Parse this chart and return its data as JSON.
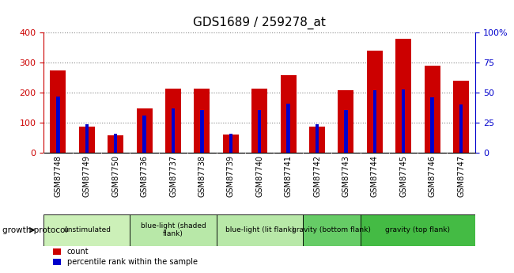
{
  "title": "GDS1689 / 259278_at",
  "samples": [
    "GSM87748",
    "GSM87749",
    "GSM87750",
    "GSM87736",
    "GSM87737",
    "GSM87738",
    "GSM87739",
    "GSM87740",
    "GSM87741",
    "GSM87742",
    "GSM87743",
    "GSM87744",
    "GSM87745",
    "GSM87746",
    "GSM87747"
  ],
  "counts": [
    275,
    88,
    58,
    148,
    213,
    215,
    62,
    215,
    260,
    88,
    210,
    340,
    380,
    290,
    240
  ],
  "percentiles": [
    47,
    24,
    16,
    31,
    37,
    36,
    16,
    36,
    41,
    24,
    36,
    52,
    53,
    46,
    40
  ],
  "groups": [
    {
      "label": "unstimulated",
      "start": 0,
      "end": 3,
      "color": "#ccf0b8"
    },
    {
      "label": "blue-light (shaded\nflank)",
      "start": 3,
      "end": 6,
      "color": "#b8e8a8"
    },
    {
      "label": "blue-light (lit flank)",
      "start": 6,
      "end": 9,
      "color": "#b8e8a8"
    },
    {
      "label": "gravity (bottom flank)",
      "start": 9,
      "end": 11,
      "color": "#66cc66"
    },
    {
      "label": "gravity (top flank)",
      "start": 11,
      "end": 15,
      "color": "#44bb44"
    }
  ],
  "ylim_left": [
    0,
    400
  ],
  "ylim_right": [
    0,
    100
  ],
  "yticks_left": [
    0,
    100,
    200,
    300,
    400
  ],
  "yticks_right": [
    0,
    25,
    50,
    75,
    100
  ],
  "bar_color": "#cc0000",
  "pct_color": "#0000cc",
  "grid_color": "#888888",
  "bg_color": "#d8d8d8",
  "axis_bg": "#ffffff"
}
